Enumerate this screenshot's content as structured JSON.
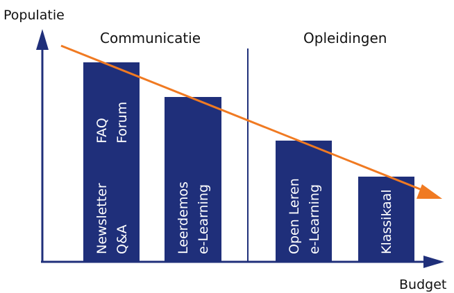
{
  "axes": {
    "y_label": "Populatie",
    "x_label": "Budget"
  },
  "sections": {
    "left": "Communicatie",
    "right": "Opleidingen"
  },
  "bars": [
    {
      "id": "bar-1",
      "lines": [
        "Newsletter",
        "Q&A"
      ],
      "top_lines": [
        "FAQ",
        "Forum"
      ]
    },
    {
      "id": "bar-2",
      "lines": [
        "Leerdemos",
        "e-Learning"
      ],
      "top_lines": []
    },
    {
      "id": "bar-3",
      "lines": [
        "Open Leren",
        "e-Learning"
      ],
      "top_lines": []
    },
    {
      "id": "bar-4",
      "lines": [
        "Klassikaal"
      ],
      "top_lines": []
    }
  ],
  "colors": {
    "axis": "#1f2f7a",
    "bar": "#1f2f7a",
    "trend_arrow": "#f07a22",
    "divider": "#1f2f7a",
    "bar_text": "#ffffff"
  }
}
